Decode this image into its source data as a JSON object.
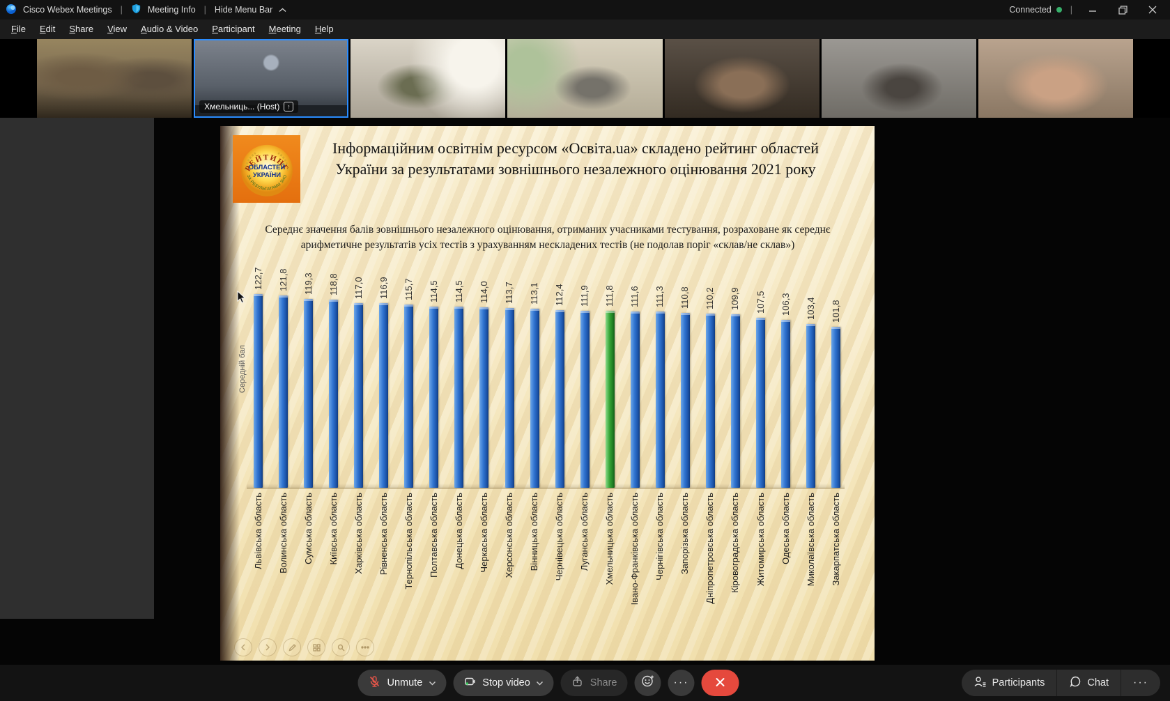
{
  "titlebar": {
    "app_title": "Cisco Webex Meetings",
    "separator": "|",
    "meeting_info": "Meeting Info",
    "hide_menu_bar": "Hide Menu Bar",
    "connected": "Connected",
    "connected_dot_color": "#37b06a"
  },
  "menubar": {
    "items": [
      "File",
      "Edit",
      "Share",
      "View",
      "Audio & Video",
      "Participant",
      "Meeting",
      "Help"
    ]
  },
  "filmstrip": {
    "participants": [
      {
        "host": false
      },
      {
        "host": true,
        "label": "Хмельниць...",
        "suffix": "(Host)"
      },
      {
        "host": false
      },
      {
        "host": false
      },
      {
        "host": false
      },
      {
        "host": false
      },
      {
        "host": false
      }
    ]
  },
  "slide": {
    "logo": {
      "arc_top": "РЕЙТИНГ",
      "center1": "ОБЛАСТЕЙ",
      "center2": "УКРАЇНИ",
      "arc_bottom": "ЗА РЕЗУЛЬТАТАМИ ЗНО"
    },
    "title": "Інформаційним освітнім ресурсом «Освіта.ua» складено рейтинг областей України за результатами зовнішнього незалежного оцінювання 2021 року",
    "subtitle": "Середнє значення балів зовнішнього незалежного оцінювання, отриманих учасниками тестування, розраховане як середнє арифметичне результатів усіх тестів з урахуванням нескладених тестів (не подолав поріг «склав/не склав»)"
  },
  "chart_data": {
    "type": "bar",
    "title": "Рейтинг областей України за результатами зовнішнього незалежного оцінювання 2021 року",
    "ylabel": "Середній бал",
    "categories": [
      "Львівська область",
      "Волинська область",
      "Сумська область",
      "Київська область",
      "Харківська область",
      "Рівненська область",
      "Тернопільська область",
      "Полтавська область",
      "Донецька область",
      "Черкаська область",
      "Херсонська область",
      "Вінницька область",
      "Чернівецька область",
      "Луганська область",
      "Хмельницька область",
      "Івано-Франківська область",
      "Чернігівська область",
      "Запорізька область",
      "Дніпропетровська область",
      "Кіровоградська область",
      "Житомирська область",
      "Одеська область",
      "Миколаївська область",
      "Закарпатська область"
    ],
    "values": [
      122.7,
      121.8,
      119.3,
      118.8,
      117.0,
      116.9,
      115.7,
      114.5,
      114.5,
      114.0,
      113.7,
      113.1,
      112.4,
      111.9,
      111.8,
      111.6,
      111.3,
      110.8,
      110.2,
      109.9,
      107.5,
      106.3,
      103.4,
      101.8
    ],
    "value_labels": [
      "122,7",
      "121,8",
      "119,3",
      "118,8",
      "117,0",
      "116,9",
      "115,7",
      "114,5",
      "114,5",
      "114,0",
      "113,7",
      "113,1",
      "112,4",
      "111,9",
      "111,8",
      "111,6",
      "111,3",
      "110,8",
      "110,2",
      "109,9",
      "107,5",
      "106,3",
      "103,4",
      "101,8"
    ],
    "highlight_index": 14,
    "highlight_category": "Хмельницька область",
    "bar_color": "#2f72cf",
    "highlight_color": "#35a435",
    "ylim": [
      0,
      130
    ],
    "grid": false,
    "legend": false
  },
  "toolbar": {
    "unmute": "Unmute",
    "stop_video": "Stop video",
    "share": "Share",
    "participants": "Participants",
    "chat": "Chat"
  },
  "icons": {
    "ellipsis": "···",
    "share_arrow": "↑"
  }
}
